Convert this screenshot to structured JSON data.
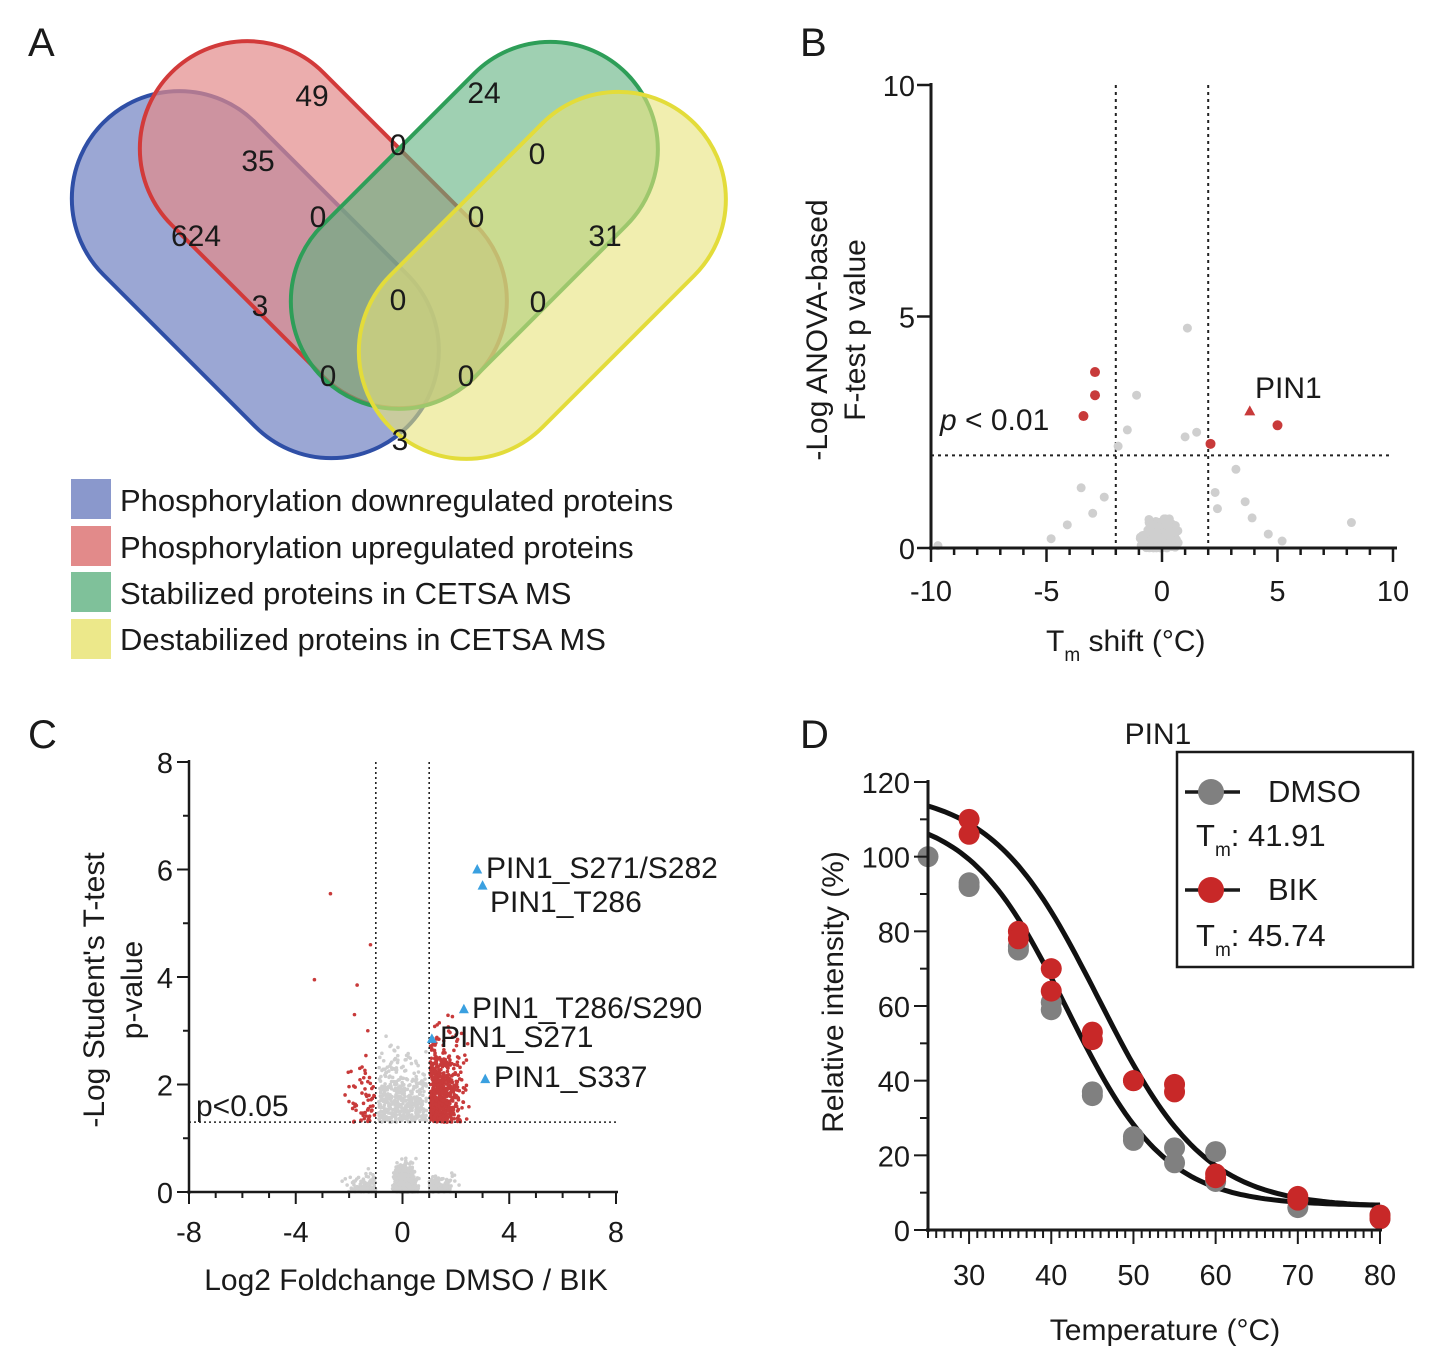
{
  "panels": {
    "A": {
      "letter": "A",
      "venn": {
        "sets": [
          {
            "name": "Phosphorylation downregulated proteins",
            "color": "#2f4fa6",
            "fill": "#8a98cc"
          },
          {
            "name": "Phosphorylation upregulated proteins",
            "color": "#d23a3a",
            "fill": "#e28a8a"
          },
          {
            "name": "Stabilized proteins in CETSA MS",
            "color": "#2e9e58",
            "fill": "#7fc19a"
          },
          {
            "name": "Destabilized proteins in CETSA MS",
            "color": "#e3dc3a",
            "fill": "#ece88a"
          }
        ],
        "counts": {
          "down_only": "624",
          "up_only": "49",
          "stab_only": "24",
          "destab_only": "31",
          "down_up": "35",
          "up_stab": "0",
          "stab_destab": "0",
          "down_up_stab": "0",
          "up_stab_destab": "0",
          "down_stab": "3",
          "all_four": "0",
          "up_destab": "0",
          "down_stab_destab": "0",
          "down_up_destab": "0",
          "down_destab": "3"
        }
      }
    },
    "B": {
      "letter": "B",
      "chart_data": {
        "type": "scatter",
        "xlabel_main": "T",
        "xlabel_sub": "m",
        "xlabel_rest": " shift (°C)",
        "ylabel_line1": "-Log ANOVA-based",
        "ylabel_line2": "F-test p value",
        "xlim": [
          -10,
          10
        ],
        "ylim": [
          0,
          10
        ],
        "xticks": [
          "-10",
          "-5",
          "0",
          "5",
          "10"
        ],
        "yticks": [
          "0",
          "5",
          "10"
        ],
        "vlines": [
          -2,
          2
        ],
        "hline": 2,
        "threshold_p": "p",
        "threshold_rest": " < 0.01",
        "highlight_label": "PIN1",
        "highlight_point": {
          "x": 3.8,
          "y": 2.95
        },
        "significant_points": [
          {
            "x": -2.9,
            "y": 3.8
          },
          {
            "x": -2.9,
            "y": 3.3
          },
          {
            "x": -3.4,
            "y": 2.85
          },
          {
            "x": 2.1,
            "y": 2.25
          },
          {
            "x": 5.0,
            "y": 2.65
          }
        ],
        "background_points_gray": "many non-significant proteins (y < 2), plus outliers near (1.1, 4.75), (-1.1, 3.3)",
        "colors": {
          "significant": "#c83a3a",
          "background": "#cfcfcf"
        }
      }
    },
    "C": {
      "letter": "C",
      "chart_data": {
        "type": "scatter",
        "xlabel": "Log2 Foldchange DMSO / BIK",
        "ylabel_line1": "-Log Student's T-test",
        "ylabel_line2": "p-value",
        "xlim": [
          -8,
          8
        ],
        "ylim": [
          0,
          8
        ],
        "xticks": [
          "-8",
          "-4",
          "0",
          "4",
          "8"
        ],
        "yticks": [
          "0",
          "2",
          "4",
          "6",
          "8"
        ],
        "vlines": [
          -1,
          1
        ],
        "hline": 1.3,
        "threshold_label": "p<0.05",
        "labeled_points": [
          {
            "label": "PIN1_S271/S282",
            "x": 2.8,
            "y": 6.0
          },
          {
            "label": "PIN1_T286",
            "x": 3.0,
            "y": 5.7
          },
          {
            "label": "PIN1_T286/S290",
            "x": 2.3,
            "y": 3.4
          },
          {
            "label": "PIN1_S271",
            "x": 1.1,
            "y": 2.85
          },
          {
            "label": "PIN1_S337",
            "x": 3.1,
            "y": 2.1
          }
        ],
        "colors": {
          "significant": "#c83a3a",
          "background": "#cfcfcf",
          "highlight": "#3aa0e0"
        }
      }
    },
    "D": {
      "letter": "D",
      "chart_data": {
        "type": "scatter",
        "title": "PIN1",
        "xlabel": "Temperature (°C)",
        "ylabel": "Relative intensity (%)",
        "xlim": [
          25,
          80
        ],
        "ylim": [
          0,
          120
        ],
        "xticks": [
          "30",
          "40",
          "50",
          "60",
          "70",
          "80"
        ],
        "yticks": [
          "0",
          "20",
          "40",
          "60",
          "80",
          "100",
          "120"
        ],
        "series": [
          {
            "name": "DMSO",
            "tm_prefix": "T",
            "tm_sub": "m",
            "tm_value": ": 41.91",
            "color": "#808080",
            "x": [
              25,
              30,
              30,
              36,
              36,
              40,
              40,
              45,
              45,
              50,
              50,
              55,
              55,
              60,
              60,
              70,
              70,
              80,
              80
            ],
            "y": [
              100,
              93,
              92,
              76,
              75,
              61,
              59,
              37,
              36,
              25,
              24,
              22,
              18,
              21,
              13,
              8,
              6,
              4,
              3
            ]
          },
          {
            "name": "BIK",
            "tm_prefix": "T",
            "tm_sub": "m",
            "tm_value": ": 45.74",
            "color": "#c82828",
            "x": [
              30,
              30,
              36,
              36,
              40,
              40,
              45,
              45,
              50,
              50,
              55,
              55,
              60,
              60,
              70,
              70,
              80,
              80
            ],
            "y": [
              110,
              106,
              80,
              78,
              70,
              64,
              53,
              51,
              40,
              40,
              39,
              37,
              15,
              14,
              9,
              8,
              4,
              3
            ]
          }
        ]
      }
    }
  }
}
